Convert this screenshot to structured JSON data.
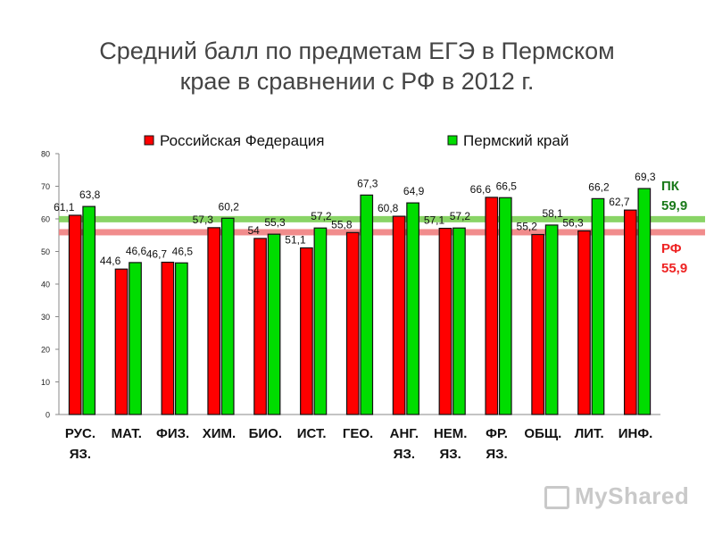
{
  "title_lines": [
    "Средний балл по предметам ЕГЭ в Пермском",
    "крае в сравнении с РФ в 2012 г."
  ],
  "colors": {
    "rf": "#ff0000",
    "pk": "#00dd00",
    "rf_line": "#f08080",
    "pk_line": "#7ccf55",
    "pk_text": "#1a7a1a",
    "rf_text": "#ee2222"
  },
  "watermark": "MyShared",
  "chart_data": {
    "type": "bar",
    "categories": [
      [
        "РУС.",
        "ЯЗ."
      ],
      [
        "МАТ."
      ],
      [
        "ФИЗ."
      ],
      [
        "ХИМ."
      ],
      [
        "БИО."
      ],
      [
        "ИСТ."
      ],
      [
        "ГЕО."
      ],
      [
        "АНГ.",
        "ЯЗ."
      ],
      [
        "НЕМ.",
        "ЯЗ."
      ],
      [
        "ФР.",
        "ЯЗ."
      ],
      [
        "ОБЩ."
      ],
      [
        "ЛИТ."
      ],
      [
        "ИНФ."
      ]
    ],
    "series": [
      {
        "name": "Российская Федерация",
        "values": [
          61.1,
          44.6,
          46.7,
          57.3,
          54,
          51.1,
          55.8,
          60.8,
          57.1,
          66.6,
          55.2,
          56.3,
          62.7
        ],
        "labels": [
          "61,1",
          "44,6",
          "46,7",
          "57,3",
          "54",
          "51,1",
          "55,8",
          "60,8",
          "57,1",
          "66,6",
          "55,2",
          "56,3",
          "62,7"
        ]
      },
      {
        "name": "Пермский край",
        "values": [
          63.8,
          46.6,
          46.5,
          60.2,
          55.3,
          57.2,
          67.3,
          64.9,
          57.2,
          66.5,
          58.1,
          66.2,
          69.3
        ],
        "labels": [
          "63,8",
          "46,6",
          "46,5",
          "60,2",
          "55,3",
          "57,2",
          "67,3",
          "64,9",
          "57,2",
          "66,5",
          "58,1",
          "66,2",
          "69,3"
        ]
      }
    ],
    "yticks": [
      "0",
      "10",
      "20",
      "30",
      "40",
      "50",
      "60",
      "70",
      "80"
    ],
    "ylim": [
      0,
      80
    ],
    "legend_position": "top",
    "reference_lines": [
      {
        "name": "ПК",
        "value": 59.9,
        "label_value": "59,9"
      },
      {
        "name": "РФ",
        "value": 55.9,
        "label_value": "55,9"
      }
    ]
  }
}
